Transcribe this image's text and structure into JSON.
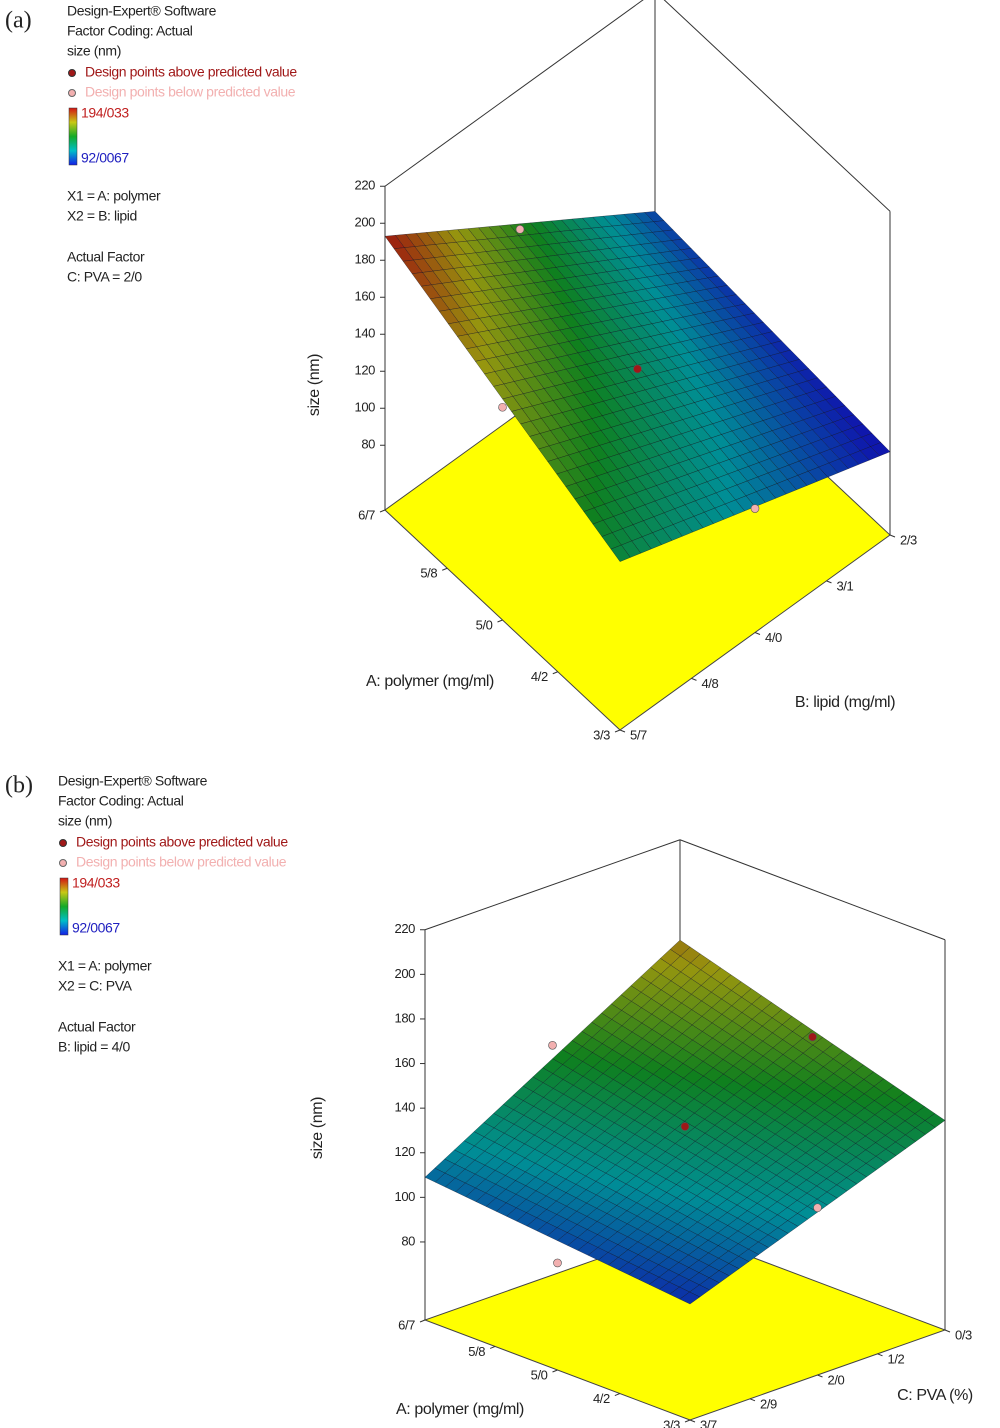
{
  "chart_data": [
    {
      "type": "surface3d",
      "panel": "(a)",
      "header": [
        "Design-Expert® Software",
        "Factor Coding: Actual",
        "size (nm)"
      ],
      "legend": {
        "above": "Design points above predicted value",
        "below": "Design points below predicted value"
      },
      "above_color": "#a01818",
      "below_color": "#f2b0b0",
      "floor_color": "#ffff00",
      "colorbar": {
        "ticks": [
          {
            "value": 194.033,
            "label": "194/033"
          },
          {
            "value": 92.0067,
            "label": "92/0067"
          }
        ]
      },
      "factors": [
        "X1 = A: polymer",
        "X2 = B: lipid"
      ],
      "actual_factor": [
        "Actual Factor",
        "C: PVA = 2/0"
      ],
      "xlabel": "A: polymer (mg/ml)",
      "ylabel": "B: lipid (mg/ml)",
      "zlabel": "size (nm)",
      "xlim": [
        3.3,
        6.7
      ],
      "xticks": [
        {
          "value": 6.7,
          "label": "6/7"
        },
        {
          "value": 5.8,
          "label": "5/8"
        },
        {
          "value": 5.0,
          "label": "5/0"
        },
        {
          "value": 4.2,
          "label": "4/2"
        },
        {
          "value": 3.3,
          "label": "3/3"
        }
      ],
      "ylim": [
        5.7,
        2.3
      ],
      "yticks": [
        {
          "value": 2.3,
          "label": "2/3"
        },
        {
          "value": 3.1,
          "label": "3/1"
        },
        {
          "value": 4.0,
          "label": "4/0"
        },
        {
          "value": 4.8,
          "label": "4/8"
        },
        {
          "value": 5.7,
          "label": "5/7"
        }
      ],
      "zlim": [
        45,
        220
      ],
      "zticks": [
        80,
        100,
        120,
        140,
        160,
        180,
        200,
        220
      ],
      "surface": {
        "x": [
          3.3,
          6.7
        ],
        "y": [
          5.7,
          2.3
        ],
        "z": [
          [
            136,
            90
          ],
          [
            193,
            101
          ]
        ]
      },
      "points": [
        {
          "x": 5.0,
          "y": 4.0,
          "z": 128,
          "above": true
        },
        {
          "x": 6.7,
          "y": 4.0,
          "z": 144,
          "above": false
        },
        {
          "x": 5.0,
          "y": 5.7,
          "z": 160,
          "above": false
        },
        {
          "x": 3.3,
          "y": 4.0,
          "z": 112,
          "above": false
        }
      ]
    },
    {
      "type": "surface3d",
      "panel": "(b)",
      "header": [
        "Design-Expert® Software",
        "Factor Coding: Actual",
        "size (nm)"
      ],
      "legend": {
        "above": "Design points above predicted value",
        "below": "Design points below predicted value"
      },
      "above_color": "#a01818",
      "below_color": "#f2b0b0",
      "floor_color": "#ffff00",
      "colorbar": {
        "ticks": [
          {
            "value": 194.033,
            "label": "194/033"
          },
          {
            "value": 92.0067,
            "label": "92/0067"
          }
        ]
      },
      "factors": [
        "X1 = A: polymer",
        "X2 = C: PVA"
      ],
      "actual_factor": [
        "Actual Factor",
        "B: lipid = 4/0"
      ],
      "xlabel": "A: polymer (mg/ml)",
      "ylabel": "C: PVA (%)",
      "zlabel": "size (nm)",
      "xlim": [
        3.3,
        6.7
      ],
      "xticks": [
        {
          "value": 6.7,
          "label": "6/7"
        },
        {
          "value": 5.8,
          "label": "5/8"
        },
        {
          "value": 5.0,
          "label": "5/0"
        },
        {
          "value": 4.2,
          "label": "4/2"
        },
        {
          "value": 3.3,
          "label": "3/3"
        }
      ],
      "ylim": [
        3.7,
        0.3
      ],
      "yticks": [
        {
          "value": 0.3,
          "label": "0/3"
        },
        {
          "value": 1.2,
          "label": "1/2"
        },
        {
          "value": 2.0,
          "label": "2/0"
        },
        {
          "value": 2.9,
          "label": "2/9"
        },
        {
          "value": 3.7,
          "label": "3/7"
        }
      ],
      "zlim": [
        45,
        220
      ],
      "zticks": [
        80,
        100,
        120,
        140,
        160,
        180,
        200,
        220
      ],
      "surface": {
        "x": [
          3.3,
          6.7
        ],
        "y": [
          3.7,
          0.3
        ],
        "z": [
          [
            97,
            139
          ],
          [
            109,
            175
          ]
        ]
      },
      "points": [
        {
          "x": 5.0,
          "y": 2.0,
          "z": 134,
          "above": true
        },
        {
          "x": 5.0,
          "y": 0.3,
          "z": 154,
          "above": true
        },
        {
          "x": 6.7,
          "y": 2.0,
          "z": 148,
          "above": false
        },
        {
          "x": 5.0,
          "y": 3.7,
          "z": 93,
          "above": false
        },
        {
          "x": 3.3,
          "y": 2.0,
          "z": 120,
          "above": false
        }
      ]
    }
  ]
}
